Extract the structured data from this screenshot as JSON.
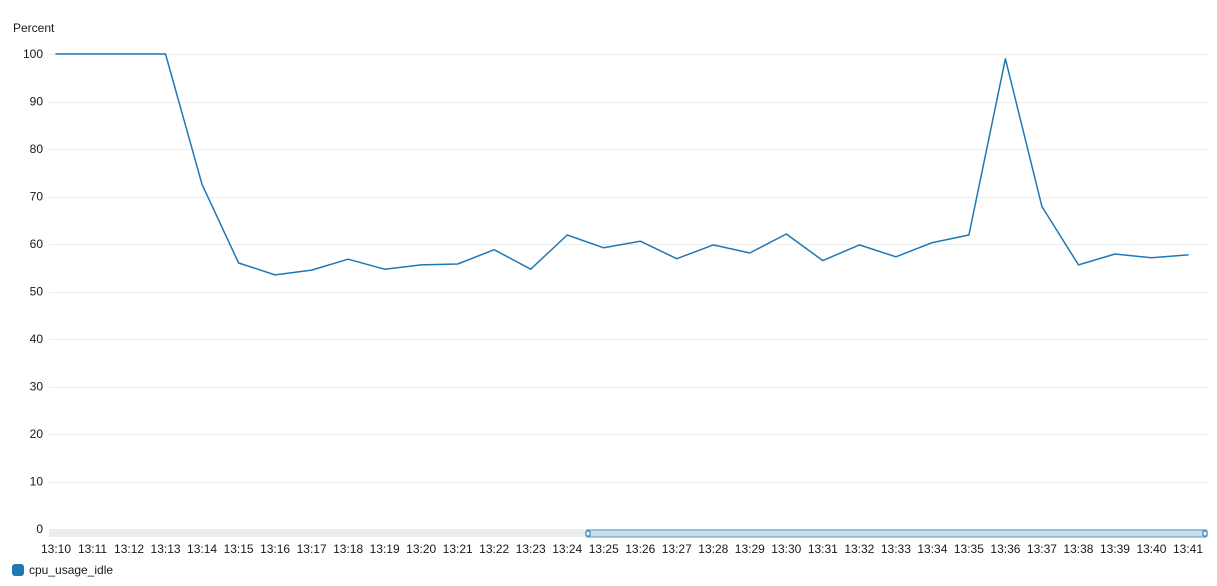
{
  "chart_data": {
    "type": "line",
    "title": "",
    "xlabel": "",
    "ylabel": "Percent",
    "ylim": [
      0,
      100
    ],
    "yticks": [
      0,
      10,
      20,
      30,
      40,
      50,
      60,
      70,
      80,
      90,
      100
    ],
    "grid": true,
    "legend_position": "bottom-left",
    "x": [
      "13:10",
      "13:11",
      "13:12",
      "13:13",
      "13:14",
      "13:15",
      "13:16",
      "13:17",
      "13:18",
      "13:19",
      "13:20",
      "13:21",
      "13:22",
      "13:23",
      "13:24",
      "13:25",
      "13:26",
      "13:27",
      "13:28",
      "13:29",
      "13:30",
      "13:31",
      "13:32",
      "13:33",
      "13:34",
      "13:35",
      "13:36",
      "13:37",
      "13:38",
      "13:39",
      "13:40",
      "13:41"
    ],
    "series": [
      {
        "name": "cpu_usage_idle",
        "color": "#1f77b4",
        "values": [
          100,
          100,
          100,
          100,
          72.5,
          56,
          53.5,
          54.5,
          56.8,
          54.7,
          55.6,
          55.8,
          58.8,
          54.7,
          61.9,
          59.2,
          60.6,
          56.9,
          59.8,
          58.1,
          62.1,
          56.5,
          59.8,
          57.3,
          60.3,
          61.9,
          99,
          67.9,
          55.6,
          57.9,
          57.1,
          57.7
        ]
      }
    ]
  },
  "legend": {
    "items": [
      {
        "label": "cpu_usage_idle",
        "color": "#1f77b4"
      }
    ]
  }
}
